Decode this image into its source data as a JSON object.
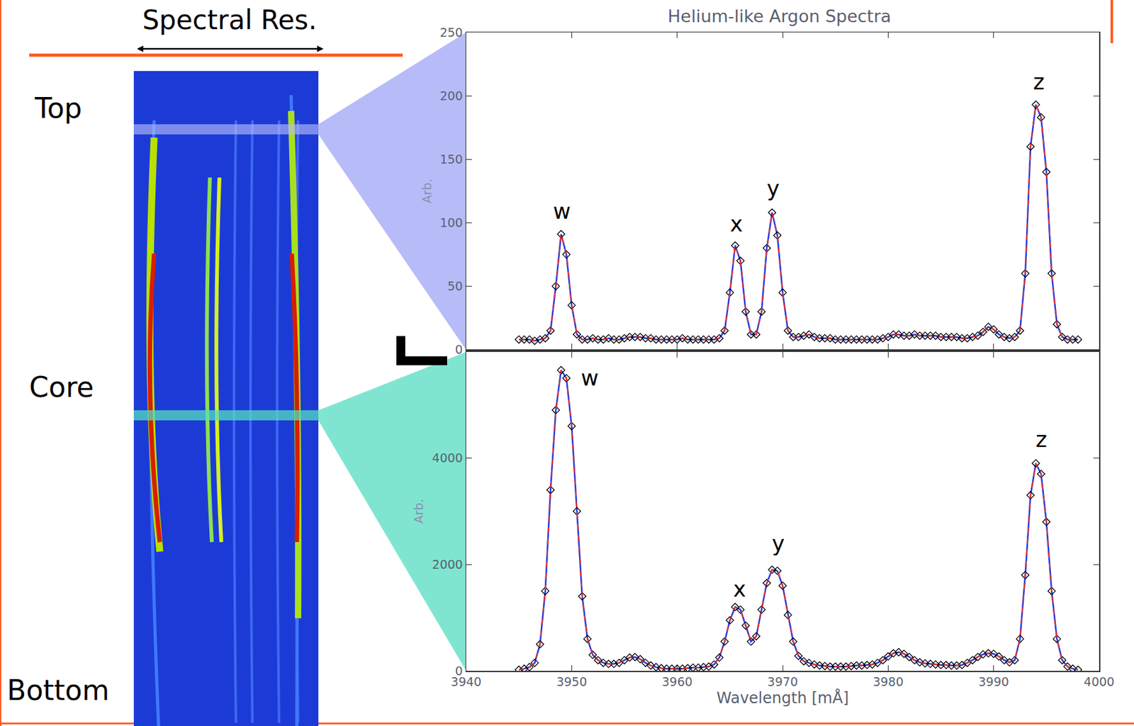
{
  "labels": {
    "resolution": "Spectral Res.",
    "regions": [
      "Top",
      "Core",
      "Bottom"
    ]
  },
  "chart_data": [
    {
      "type": "line",
      "title": "Helium-like Argon Spectra",
      "ylabel": "Arb.",
      "tick_labels": "y",
      "x": [
        3945,
        3945.5,
        3946,
        3946.5,
        3947,
        3947.5,
        3948,
        3948.5,
        3949,
        3949.5,
        3950,
        3950.5,
        3951,
        3951.5,
        3952,
        3952.5,
        3953,
        3953.5,
        3954,
        3954.5,
        3955,
        3955.5,
        3956,
        3956.5,
        3957,
        3957.5,
        3958,
        3958.5,
        3959,
        3959.5,
        3960,
        3960.5,
        3961,
        3961.5,
        3962,
        3962.5,
        3963,
        3963.5,
        3964,
        3964.5,
        3965,
        3965.5,
        3966,
        3966.5,
        3967,
        3967.5,
        3968,
        3968.5,
        3969,
        3969.5,
        3970,
        3970.5,
        3971,
        3971.5,
        3972,
        3972.5,
        3973,
        3973.5,
        3974,
        3974.5,
        3975,
        3975.5,
        3976,
        3976.5,
        3977,
        3977.5,
        3978,
        3978.5,
        3979,
        3979.5,
        3980,
        3980.5,
        3981,
        3981.5,
        3982,
        3982.5,
        3983,
        3983.5,
        3984,
        3984.5,
        3985,
        3985.5,
        3986,
        3986.5,
        3987,
        3987.5,
        3988,
        3988.5,
        3989,
        3989.5,
        3990,
        3990.5,
        3991,
        3991.5,
        3992,
        3992.5,
        3993,
        3993.5,
        3994,
        3994.5,
        3995,
        3995.5,
        3996,
        3996.5,
        3997,
        3997.5,
        3998
      ],
      "series": [
        {
          "color": "#2238e8",
          "marker": "diamond-open",
          "line_style": "solid",
          "values": [
            8,
            8,
            8,
            7,
            8,
            9,
            15,
            50,
            91,
            75,
            35,
            12,
            8,
            8,
            9,
            8,
            8,
            9,
            8,
            8,
            9,
            10,
            10,
            10,
            9,
            9,
            8,
            8,
            8,
            8,
            8,
            9,
            8,
            8,
            8,
            8,
            8,
            8,
            9,
            15,
            45,
            82,
            70,
            30,
            12,
            12,
            30,
            80,
            108,
            90,
            45,
            15,
            10,
            10,
            11,
            12,
            10,
            9,
            9,
            9,
            8,
            8,
            8,
            8,
            8,
            8,
            8,
            8,
            8,
            9,
            10,
            12,
            12,
            11,
            11,
            12,
            11,
            11,
            11,
            11,
            10,
            10,
            10,
            10,
            9,
            9,
            10,
            11,
            14,
            18,
            16,
            12,
            10,
            9,
            10,
            15,
            60,
            160,
            193,
            183,
            140,
            60,
            20,
            10,
            8,
            8,
            8
          ]
        }
      ],
      "xlim": [
        3940,
        4000
      ],
      "xticks": [
        3940,
        3950,
        3960,
        3970,
        3980,
        3990,
        4000
      ],
      "ylim": [
        0,
        250
      ],
      "yticks": [
        0,
        50,
        100,
        150,
        200,
        250
      ],
      "annotations": [
        {
          "text": "w",
          "x": 3949.1,
          "y": 109
        },
        {
          "text": "x",
          "x": 3965.6,
          "y": 99
        },
        {
          "text": "y",
          "x": 3969.1,
          "y": 127
        },
        {
          "text": "z",
          "x": 3994.3,
          "y": 211
        }
      ]
    },
    {
      "type": "line",
      "ylabel": "Arb.",
      "xlabel": "Wavelength [mÅ]",
      "x": [
        3945,
        3945.5,
        3946,
        3946.5,
        3947,
        3947.5,
        3948,
        3948.5,
        3949,
        3949.5,
        3950,
        3950.5,
        3951,
        3951.5,
        3952,
        3952.5,
        3953,
        3953.5,
        3954,
        3954.5,
        3955,
        3955.5,
        3956,
        3956.5,
        3957,
        3957.5,
        3958,
        3958.5,
        3959,
        3959.5,
        3960,
        3960.5,
        3961,
        3961.5,
        3962,
        3962.5,
        3963,
        3963.5,
        3964,
        3964.5,
        3965,
        3965.5,
        3966,
        3966.5,
        3967,
        3967.5,
        3968,
        3968.5,
        3969,
        3969.5,
        3970,
        3970.5,
        3971,
        3971.5,
        3972,
        3972.5,
        3973,
        3973.5,
        3974,
        3974.5,
        3975,
        3975.5,
        3976,
        3976.5,
        3977,
        3977.5,
        3978,
        3978.5,
        3979,
        3979.5,
        3980,
        3980.5,
        3981,
        3981.5,
        3982,
        3982.5,
        3983,
        3983.5,
        3984,
        3984.5,
        3985,
        3985.5,
        3986,
        3986.5,
        3987,
        3987.5,
        3988,
        3988.5,
        3989,
        3989.5,
        3990,
        3990.5,
        3991,
        3991.5,
        3992,
        3992.5,
        3993,
        3993.5,
        3994,
        3994.5,
        3995,
        3995.5,
        3996,
        3996.5,
        3997,
        3997.5,
        3998
      ],
      "series": [
        {
          "color": "#2238e8",
          "marker": "diamond-open",
          "line_style": "solid",
          "values": [
            20,
            40,
            70,
            150,
            500,
            1500,
            3400,
            4900,
            5650,
            5500,
            4600,
            3000,
            1400,
            600,
            300,
            200,
            150,
            130,
            130,
            150,
            200,
            250,
            260,
            220,
            150,
            100,
            70,
            50,
            40,
            40,
            40,
            40,
            50,
            60,
            60,
            70,
            80,
            120,
            250,
            550,
            950,
            1200,
            1150,
            850,
            550,
            650,
            1150,
            1650,
            1900,
            1880,
            1600,
            1050,
            550,
            280,
            180,
            150,
            120,
            100,
            90,
            80,
            80,
            80,
            80,
            90,
            100,
            100,
            110,
            120,
            150,
            200,
            270,
            330,
            350,
            320,
            260,
            200,
            160,
            140,
            130,
            120,
            110,
            110,
            100,
            100,
            110,
            150,
            200,
            260,
            310,
            330,
            320,
            270,
            200,
            160,
            200,
            600,
            1800,
            3300,
            3900,
            3700,
            2800,
            1500,
            600,
            200,
            80,
            40,
            20
          ]
        }
      ],
      "xlim": [
        3940,
        4000
      ],
      "xticks": [
        3940,
        3950,
        3960,
        3970,
        3980,
        3990,
        4000
      ],
      "ylim": [
        0,
        6000
      ],
      "yticks": [
        0,
        2000,
        4000
      ],
      "annotations": [
        {
          "text": "w",
          "x": 3951.7,
          "y": 5510
        },
        {
          "text": "x",
          "x": 3965.9,
          "y": 1537
        },
        {
          "text": "y",
          "x": 3969.6,
          "y": 2395
        },
        {
          "text": "z",
          "x": 3994.5,
          "y": 4354
        }
      ]
    }
  ]
}
